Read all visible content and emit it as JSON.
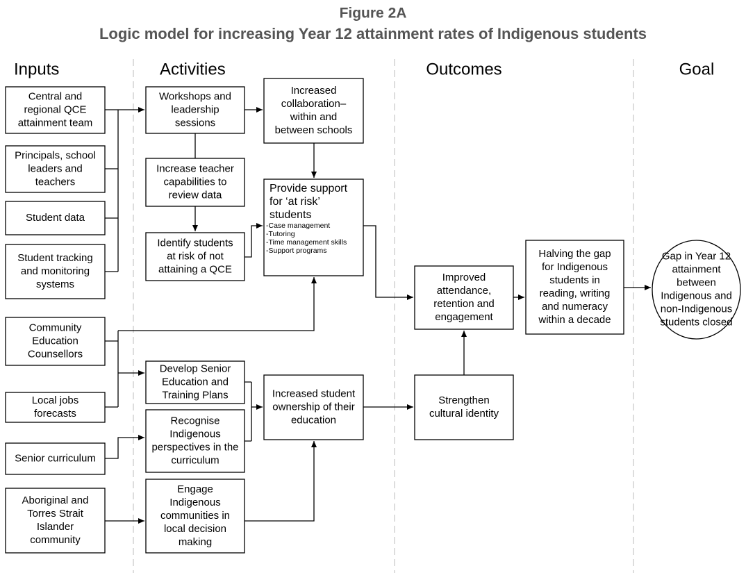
{
  "title": "Figure 2A",
  "subtitle": "Logic model for increasing Year 12 attainment rates of Indigenous students",
  "columns": [
    "Inputs",
    "Activities",
    "Outcomes",
    "Goal"
  ],
  "nodes": [
    {
      "lines": [
        "Central and",
        "regional QCE",
        "attainment team"
      ]
    },
    {
      "lines": [
        "Principals, school",
        "leaders and",
        "teachers"
      ]
    },
    {
      "lines": [
        "Student data"
      ]
    },
    {
      "lines": [
        "Student tracking",
        "and monitoring",
        "systems"
      ]
    },
    {
      "lines": [
        "Community",
        "Education",
        "Counsellors"
      ]
    },
    {
      "lines": [
        "Local jobs",
        "forecasts"
      ]
    },
    {
      "lines": [
        "Senior curriculum"
      ]
    },
    {
      "lines": [
        "Aboriginal and",
        "Torres Strait",
        "Islander",
        "community"
      ]
    },
    {
      "lines": [
        "Workshops and",
        "leadership",
        "sessions"
      ]
    },
    {
      "lines": [
        "Increase teacher",
        "capabilities to",
        "review data"
      ]
    },
    {
      "lines": [
        "Identify students",
        "at risk of not",
        "attaining a QCE"
      ]
    },
    {
      "lines": [
        "Develop Senior",
        "Education and",
        "Training Plans"
      ]
    },
    {
      "lines": [
        "Recognise",
        "Indigenous",
        "perspectives in the",
        "curriculum"
      ]
    },
    {
      "lines": [
        "Engage",
        "Indigenous",
        "communities in",
        "local decision",
        "making"
      ]
    },
    {
      "lines": [
        "Increased",
        "collaboration–",
        "within and",
        "between schools"
      ]
    },
    {
      "lines": [
        "Provide support",
        "for ‘at risk’",
        "students"
      ],
      "items": [
        "-Case management",
        "-Tutoring",
        "-Time management skills",
        "-Support programs"
      ]
    },
    {
      "lines": [
        "Increased student",
        "ownership of their",
        "education"
      ]
    },
    {
      "lines": [
        "Improved",
        "attendance,",
        "retention and",
        "engagement"
      ]
    },
    {
      "lines": [
        "Strengthen",
        "cultural identity"
      ]
    },
    {
      "lines": [
        "Halving the gap",
        "for Indigenous",
        "students in",
        "reading, writing",
        "and numeracy",
        "within a decade"
      ]
    },
    {
      "lines": [
        "Gap in Year 12",
        "attainment",
        "between",
        "Indigenous and",
        "non-Indigenous",
        "students closed"
      ]
    }
  ]
}
